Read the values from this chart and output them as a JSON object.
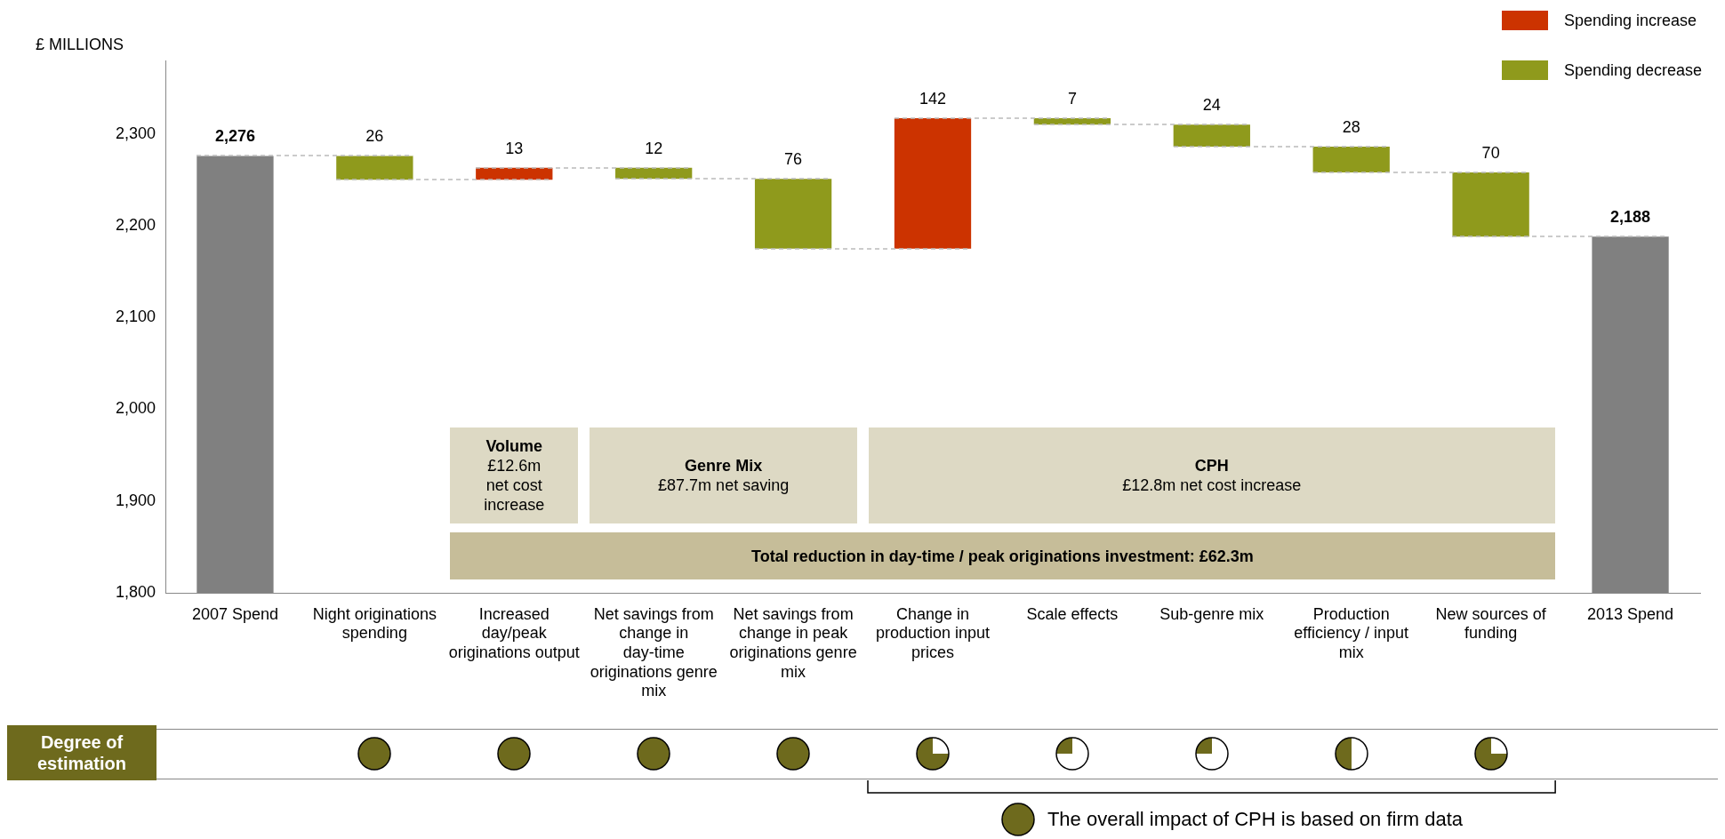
{
  "chart_data": {
    "type": "bar",
    "ylabel": "£ MILLIONS",
    "categories": [
      "2007 Spend",
      "Night originations spending",
      "Increased day/peak originations output",
      "Net savings from change in day-time originations genre mix",
      "Net savings from change in peak originations genre mix",
      "Change in production input prices",
      "Scale effects",
      "Sub-genre mix",
      "Production efficiency / input mix",
      "New sources of funding",
      "2013 Spend"
    ],
    "series": [
      {
        "color": "#808080",
        "values": [
          2276,
          null,
          null,
          null,
          null,
          null,
          null,
          null,
          null,
          null,
          2188
        ],
        "value_labels": [
          "2,276",
          null,
          null,
          null,
          null,
          null,
          null,
          null,
          null,
          null,
          "2,188"
        ]
      },
      {
        "name": "Spending increase",
        "color": "#cc3300",
        "values": [
          null,
          null,
          13,
          null,
          null,
          142,
          null,
          null,
          null,
          null,
          null
        ],
        "base": [
          null,
          null,
          2250,
          null,
          null,
          2175,
          null,
          null,
          null,
          null,
          null
        ],
        "value_labels": [
          null,
          null,
          "13",
          null,
          null,
          "142",
          null,
          null,
          null,
          null,
          null
        ]
      },
      {
        "name": "Spending decrease",
        "color": "#8f9a1c",
        "values": [
          null,
          26,
          null,
          12,
          76,
          null,
          7,
          24,
          28,
          70,
          null
        ],
        "base": [
          null,
          2250,
          null,
          2251,
          2175,
          null,
          2310,
          2286,
          2258,
          2188,
          null
        ],
        "value_labels": [
          null,
          "26",
          null,
          "12",
          "76",
          null,
          "7",
          "24",
          "28",
          "70",
          null
        ]
      }
    ],
    "ylim": [
      1800,
      2380
    ],
    "yticks": [
      {
        "value": 1800,
        "label": "1,800"
      },
      {
        "value": 1900,
        "label": "1,900"
      },
      {
        "value": 2000,
        "label": "2,000"
      },
      {
        "value": 2100,
        "label": "2,100"
      },
      {
        "value": 2200,
        "label": "2,200"
      },
      {
        "value": 2300,
        "label": "2,300"
      }
    ],
    "grid": false,
    "legend": "top right",
    "annotations": [
      "Volume",
      "£12.6m net cost increase",
      "Genre Mix",
      "£87.7m net saving",
      "CPH",
      "£12.8m net cost increase",
      "Total reduction in day-time / peak originations investment: £62.3m",
      "Degree of estimation",
      "The overall impact of CPH is based on firm data"
    ]
  }
}
